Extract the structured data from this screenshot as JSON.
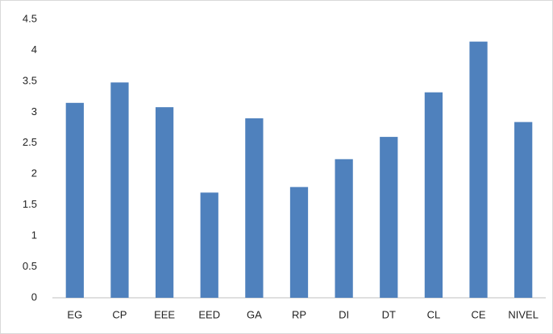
{
  "chart_data": {
    "type": "bar",
    "categories": [
      "EG",
      "CP",
      "EEE",
      "EED",
      "GA",
      "RP",
      "DI",
      "DT",
      "CL",
      "CE",
      "NIVEL"
    ],
    "values": [
      3.15,
      3.48,
      3.08,
      1.7,
      2.9,
      1.79,
      2.24,
      2.6,
      3.32,
      4.14,
      2.84
    ],
    "color": "#4f81bd",
    "ylim": [
      0,
      4.5
    ],
    "yticks": [
      0,
      0.5,
      1,
      1.5,
      2,
      2.5,
      3,
      3.5,
      4,
      4.5
    ],
    "grid": false
  }
}
